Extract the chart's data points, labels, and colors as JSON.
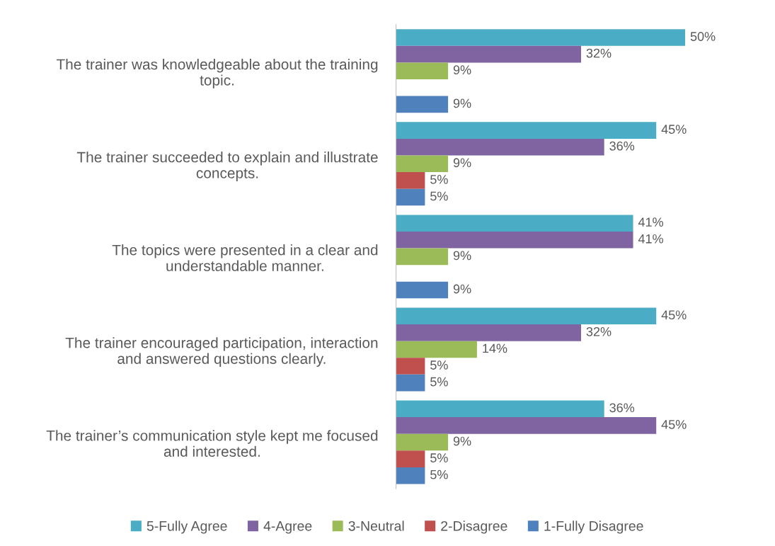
{
  "chart_data": {
    "type": "bar",
    "orientation": "horizontal",
    "legend": "bottom",
    "grid": false,
    "tick_labels": "y",
    "categories": [
      "The trainer was knowledgeable about the training\ntopic.",
      "The trainer succeeded to explain and illustrate\nconcepts.",
      "The topics were presented in a clear and\nunderstandable manner.",
      "The trainer encouraged participation, interaction\nand answered questions clearly.",
      "The trainer’s communication style kept me focused\nand interested."
    ],
    "series": [
      {
        "name": "5-Fully Agree",
        "color": "#4bacc6",
        "values": [
          50,
          45,
          41,
          45,
          36
        ],
        "value_labels": [
          "50%",
          "45%",
          "41%",
          "45%",
          "36%"
        ]
      },
      {
        "name": "4-Agree",
        "color": "#8064a2",
        "values": [
          32,
          36,
          41,
          32,
          45
        ],
        "value_labels": [
          "32%",
          "36%",
          "41%",
          "32%",
          "45%"
        ]
      },
      {
        "name": "3-Neutral",
        "color": "#9bbb59",
        "values": [
          9,
          9,
          9,
          14,
          9
        ],
        "value_labels": [
          "9%",
          "9%",
          "9%",
          "14%",
          "9%"
        ]
      },
      {
        "name": "2-Disagree",
        "color": "#c0504d",
        "values": [
          null,
          5,
          null,
          5,
          5
        ],
        "value_labels": [
          null,
          "5%",
          null,
          "5%",
          "5%"
        ]
      },
      {
        "name": "1-Fully Disagree",
        "color": "#4f81bd",
        "values": [
          9,
          5,
          9,
          5,
          5
        ],
        "value_labels": [
          "9%",
          "5%",
          "9%",
          "5%",
          "5%"
        ]
      }
    ]
  }
}
